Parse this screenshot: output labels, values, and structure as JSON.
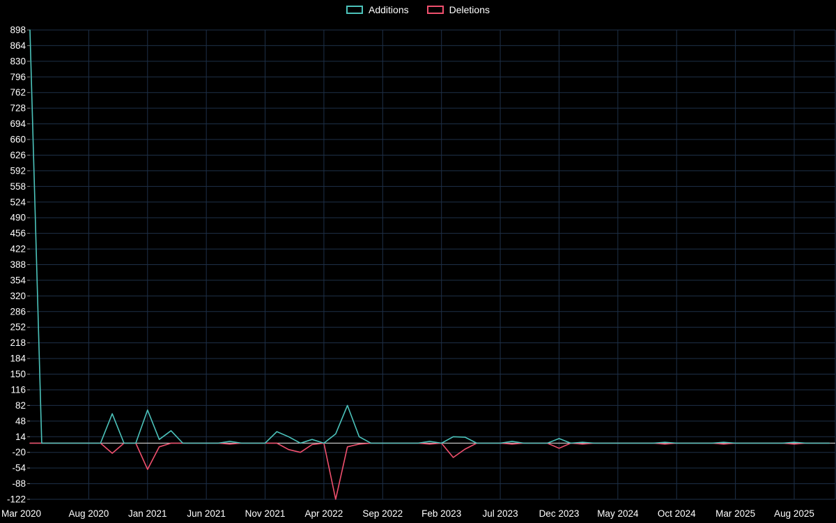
{
  "chart_data": {
    "type": "line",
    "title": "",
    "xlabel": "",
    "ylabel": "",
    "ylim": [
      -122,
      898
    ],
    "grid": true,
    "legend_position": "top-center",
    "background_color": "#000000",
    "grid_color": "#1e3048",
    "zero_line_color": "#c6c6c6",
    "text_color": "#ffffff",
    "y_ticks": [
      898,
      864,
      830,
      796,
      762,
      728,
      694,
      660,
      626,
      592,
      558,
      524,
      490,
      456,
      422,
      388,
      354,
      320,
      286,
      252,
      218,
      184,
      150,
      116,
      82,
      48,
      14,
      -20,
      -54,
      -88,
      -122
    ],
    "x_tick_labels": [
      "Mar 2020",
      "Aug 2020",
      "Jan 2021",
      "Jun 2021",
      "Nov 2021",
      "Apr 2022",
      "Sep 2022",
      "Feb 2023",
      "Jul 2023",
      "Dec 2023",
      "May 2024",
      "Oct 2024",
      "Mar 2025",
      "Aug 2025"
    ],
    "x_tick_indices": [
      0,
      5,
      10,
      15,
      20,
      25,
      30,
      35,
      40,
      45,
      50,
      55,
      60,
      65
    ],
    "x_unit": "month",
    "points_count": 69,
    "series": [
      {
        "name": "Additions",
        "color": "#4cc3bb",
        "values": [
          898,
          0,
          0,
          0,
          0,
          0,
          0,
          64,
          0,
          0,
          72,
          8,
          27,
          0,
          0,
          0,
          0,
          4,
          0,
          0,
          0,
          25,
          14,
          0,
          8,
          0,
          20,
          82,
          14,
          0,
          0,
          0,
          0,
          0,
          4,
          0,
          14,
          13,
          0,
          0,
          0,
          4,
          0,
          0,
          0,
          10,
          0,
          2,
          0,
          0,
          0,
          0,
          0,
          0,
          2,
          0,
          0,
          0,
          0,
          2,
          0,
          0,
          0,
          0,
          0,
          2,
          0,
          0,
          0
        ]
      },
      {
        "name": "Deletions",
        "color": "#f0506e",
        "values": [
          0,
          0,
          0,
          0,
          0,
          0,
          0,
          -22,
          0,
          0,
          -57,
          -8,
          0,
          0,
          0,
          0,
          0,
          -2,
          0,
          0,
          0,
          0,
          -14,
          -20,
          -3,
          0,
          -122,
          -8,
          -2,
          0,
          0,
          0,
          0,
          0,
          -2,
          0,
          -31,
          -13,
          0,
          0,
          0,
          -2,
          0,
          0,
          0,
          -11,
          0,
          -2,
          0,
          0,
          0,
          0,
          0,
          0,
          -2,
          0,
          0,
          0,
          0,
          -2,
          0,
          0,
          0,
          0,
          0,
          -2,
          0,
          0,
          0
        ]
      }
    ]
  },
  "legend": {
    "additions_label": "Additions",
    "deletions_label": "Deletions"
  }
}
